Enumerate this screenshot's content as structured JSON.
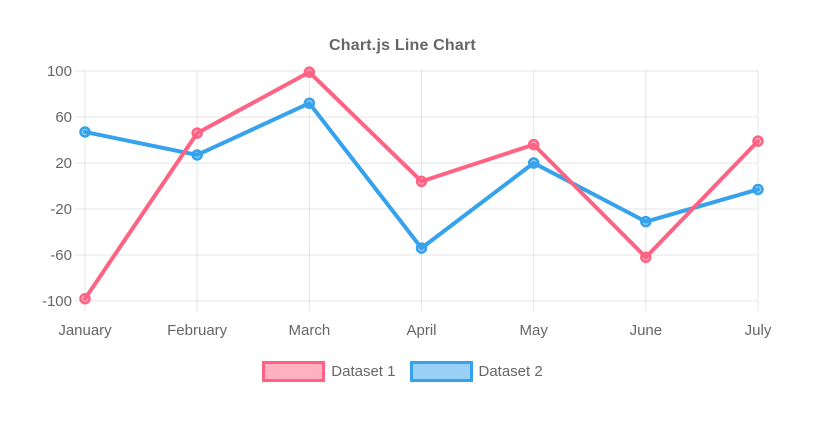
{
  "chart_data": {
    "type": "line",
    "title": "Chart.js Line Chart",
    "categories": [
      "January",
      "February",
      "March",
      "April",
      "May",
      "June",
      "July"
    ],
    "series": [
      {
        "name": "Dataset 1",
        "color": "#FF6384",
        "fill_color": "rgba(255,99,132,0.5)",
        "values": [
          -98,
          46,
          99,
          4,
          36,
          -62,
          39
        ]
      },
      {
        "name": "Dataset 2",
        "color": "#36A2EB",
        "fill_color": "rgba(54,162,235,0.5)",
        "values": [
          47,
          27,
          72,
          -54,
          20,
          -31,
          -3
        ]
      }
    ],
    "ylim": [
      -100,
      100
    ],
    "yticks": [
      100,
      60,
      20,
      -20,
      -60,
      -100
    ],
    "grid": true,
    "legend_position": "bottom",
    "colors": {
      "text": "#666666",
      "gridline": "rgba(0,0,0,0.1)",
      "background": "#ffffff"
    }
  }
}
